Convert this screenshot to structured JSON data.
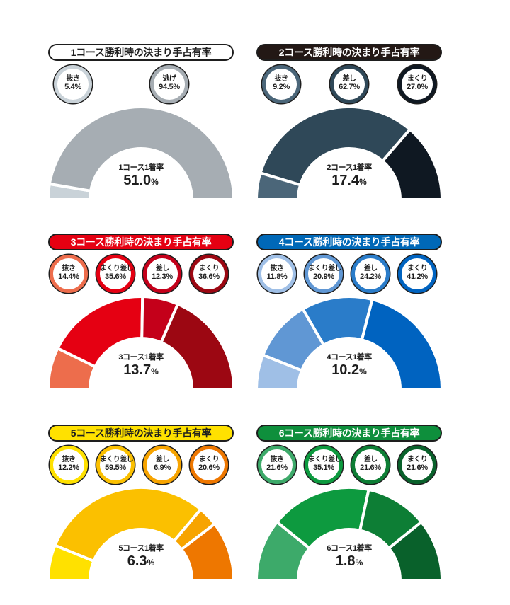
{
  "chart_data": [
    {
      "type": "pie",
      "title": "1コース勝利時の決まり手占有率",
      "categories": [
        "抜き",
        "逃げ"
      ],
      "values": [
        5.4,
        94.5
      ],
      "value_labels": [
        "5.4%",
        "94.5%"
      ],
      "colors": [
        "#c9d2d8",
        "#a6adb3"
      ],
      "title_bg": "#ffffff",
      "title_color": "#1e1e1e",
      "center_label": "1コース1着率",
      "center_value": "51.0",
      "center_unit": "%"
    },
    {
      "type": "pie",
      "title": "2コース勝利時の決まり手占有率",
      "categories": [
        "抜き",
        "差し",
        "まくり"
      ],
      "values": [
        9.2,
        62.7,
        27.0
      ],
      "value_labels": [
        "9.2%",
        "62.7%",
        "27.0%"
      ],
      "colors": [
        "#4b6679",
        "#2f4858",
        "#0f1822"
      ],
      "title_bg": "#231815",
      "title_color": "#ffffff",
      "center_label": "2コース1着率",
      "center_value": "17.4",
      "center_unit": "%"
    },
    {
      "type": "pie",
      "title": "3コース勝利時の決まり手占有率",
      "categories": [
        "抜き",
        "まくり差し",
        "差し",
        "まくり"
      ],
      "values": [
        14.4,
        35.6,
        12.3,
        36.6
      ],
      "value_labels": [
        "14.4%",
        "35.6%",
        "12.3%",
        "36.6%"
      ],
      "colors": [
        "#ed6d4c",
        "#e50012",
        "#c4001a",
        "#9c0712"
      ],
      "title_bg": "#e50012",
      "title_color": "#ffffff",
      "center_label": "3コース1着率",
      "center_value": "13.7",
      "center_unit": "%"
    },
    {
      "type": "pie",
      "title": "4コース勝利時の決まり手占有率",
      "categories": [
        "抜き",
        "まくり差し",
        "差し",
        "まくり"
      ],
      "values": [
        11.8,
        20.9,
        24.2,
        41.2
      ],
      "value_labels": [
        "11.8%",
        "20.9%",
        "24.2%",
        "41.2%"
      ],
      "colors": [
        "#9fbfe6",
        "#6097d4",
        "#2a7cc9",
        "#0063c0"
      ],
      "title_bg": "#0068b7",
      "title_color": "#ffffff",
      "center_label": "4コース1着率",
      "center_value": "10.2",
      "center_unit": "%"
    },
    {
      "type": "pie",
      "title": "5コース勝利時の決まり手占有率",
      "categories": [
        "抜き",
        "まくり差し",
        "差し",
        "まくり"
      ],
      "values": [
        12.2,
        59.5,
        6.9,
        20.6
      ],
      "value_labels": [
        "12.2%",
        "59.5%",
        "6.9%",
        "20.6%"
      ],
      "colors": [
        "#ffe100",
        "#fbc000",
        "#f7a400",
        "#ee7700"
      ],
      "title_bg": "#ffe100",
      "title_color": "#1e1e1e",
      "center_label": "5コース1着率",
      "center_value": "6.3",
      "center_unit": "%"
    },
    {
      "type": "pie",
      "title": "6コース勝利時の決まり手占有率",
      "categories": [
        "抜き",
        "まくり差し",
        "差し",
        "まくり"
      ],
      "values": [
        21.6,
        35.1,
        21.6,
        21.6
      ],
      "value_labels": [
        "21.6%",
        "35.1%",
        "21.6%",
        "21.6%"
      ],
      "colors": [
        "#3daa6a",
        "#0d9a3f",
        "#0d7e35",
        "#09612b"
      ],
      "title_bg": "#0e8f3c",
      "title_color": "#ffffff",
      "center_label": "6コース1着率",
      "center_value": "1.8",
      "center_unit": "%"
    }
  ]
}
